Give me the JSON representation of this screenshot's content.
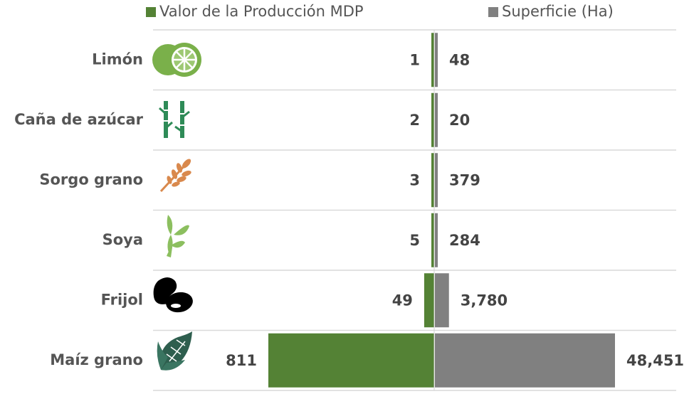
{
  "chart_data": {
    "type": "butterfly",
    "categories": [
      "Limón",
      "Caña de azúcar",
      "Sorgo grano",
      "Soya",
      "Frijol",
      "Maíz grano"
    ],
    "series": [
      {
        "name": "Valor de la Producción MDP",
        "color": "#548235",
        "side": "left",
        "xlim": [
          0,
          811
        ],
        "values": [
          1,
          2,
          3,
          5,
          49,
          811
        ]
      },
      {
        "name": "Superficie (Ha)",
        "color": "#808080",
        "side": "right",
        "xlim": [
          0,
          48451
        ],
        "values": [
          48,
          20,
          379,
          284,
          3780,
          48451
        ],
        "value_labels": [
          "48",
          "20",
          "379",
          "284",
          "3,780",
          "48,451"
        ]
      }
    ]
  }
}
